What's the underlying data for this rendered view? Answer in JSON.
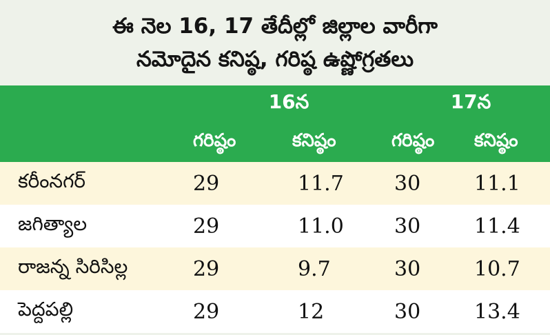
{
  "title": {
    "line1": "ఈ నెల 16, 17 తేదీల్లో జిల్లాల వారీగా",
    "line2": "నమోదైన కనిష్ఠ, గరిష్ఠ ఉష్ణోగ్రతలు"
  },
  "header": {
    "day1": "16న",
    "day2": "17న",
    "max_label": "గరిష్ఠం",
    "min_label": "కనిష్ఠం"
  },
  "rows": [
    {
      "district": "కరీంనగర్",
      "d16_max": "29",
      "d16_min": "11.7",
      "d17_max": "30",
      "d17_min": "11.1"
    },
    {
      "district": "జగిత్యాల",
      "d16_max": "29",
      "d16_min": "11.0",
      "d17_max": "30",
      "d17_min": "11.4"
    },
    {
      "district": "రాజన్న సిరిసిల్ల",
      "d16_max": "29",
      "d16_min": "9.7",
      "d17_max": "30",
      "d17_min": "10.7"
    },
    {
      "district": "పెద్దపల్లి",
      "d16_max": "29",
      "d16_min": "12",
      "d17_max": "30",
      "d17_min": "13.4"
    }
  ],
  "colors": {
    "header_bg": "#2bab4f",
    "title_bg": "#eef2ea",
    "row_alt_bg": "#fdf6dc",
    "row_bg": "#ffffff"
  }
}
